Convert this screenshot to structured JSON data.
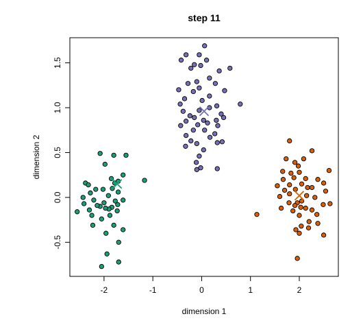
{
  "chart_data": {
    "type": "scatter",
    "title": "step 11",
    "xlabel": "dimension 1",
    "ylabel": "dimension 2",
    "xlim": [
      -2.7,
      2.8
    ],
    "ylim": [
      -0.88,
      1.78
    ],
    "x_ticks": [
      -2,
      -1,
      0,
      1,
      2
    ],
    "y_ticks": [
      -0.5,
      0.0,
      0.5,
      1.0,
      1.5
    ],
    "x_tick_labels": [
      "-2",
      "-1",
      "0",
      "1",
      "2"
    ],
    "y_tick_labels": [
      "-0.5",
      "0.0",
      "0.5",
      "1.0",
      "1.5"
    ],
    "grid": false,
    "series": [
      {
        "color": "#1b9e77",
        "centroid": [
          -1.73,
          0.15
        ],
        "points": [
          [
            -2.08,
            0.49
          ],
          [
            -1.98,
            0.37
          ],
          [
            -1.8,
            0.47
          ],
          [
            -1.55,
            0.47
          ],
          [
            -1.61,
            0.25
          ],
          [
            -1.17,
            0.19
          ],
          [
            -2.38,
            0.16
          ],
          [
            -2.32,
            0.14
          ],
          [
            -1.85,
            0.21
          ],
          [
            -1.78,
            0.16
          ],
          [
            -1.71,
            0.18
          ],
          [
            -1.83,
            0.1
          ],
          [
            -2.02,
            0.09
          ],
          [
            -2.17,
            0.09
          ],
          [
            -2.28,
            0.05
          ],
          [
            -1.71,
            0.06
          ],
          [
            -1.91,
            0.02
          ],
          [
            -2.43,
            0.0
          ],
          [
            -1.61,
            -0.03
          ],
          [
            -1.72,
            -0.08
          ],
          [
            -1.77,
            -0.04
          ],
          [
            -2.0,
            -0.06
          ],
          [
            -2.21,
            -0.03
          ],
          [
            -2.41,
            -0.07
          ],
          [
            -1.84,
            -0.11
          ],
          [
            -1.9,
            -0.13
          ],
          [
            -1.97,
            -0.12
          ],
          [
            -2.08,
            -0.1
          ],
          [
            -2.14,
            -0.09
          ],
          [
            -2.3,
            -0.14
          ],
          [
            -2.55,
            -0.16
          ],
          [
            -1.73,
            -0.15
          ],
          [
            -1.88,
            -0.2
          ],
          [
            -2.05,
            -0.24
          ],
          [
            -2.25,
            -0.2
          ],
          [
            -1.8,
            -0.31
          ],
          [
            -1.96,
            -0.4
          ],
          [
            -2.23,
            -0.31
          ],
          [
            -1.61,
            -0.36
          ],
          [
            -1.7,
            -0.5
          ],
          [
            -1.94,
            -0.63
          ],
          [
            -1.7,
            -0.72
          ],
          [
            -2.05,
            -0.77
          ]
        ]
      },
      {
        "color": "#7570b3",
        "centroid": [
          0.05,
          0.96
        ],
        "points": [
          [
            0.06,
            1.69
          ],
          [
            -0.32,
            1.59
          ],
          [
            -0.05,
            1.59
          ],
          [
            -0.42,
            1.53
          ],
          [
            0.1,
            1.53
          ],
          [
            -0.15,
            1.48
          ],
          [
            0.58,
            1.44
          ],
          [
            -0.22,
            1.44
          ],
          [
            -0.02,
            1.47
          ],
          [
            0.36,
            1.41
          ],
          [
            0.16,
            1.33
          ],
          [
            0.28,
            1.27
          ],
          [
            -0.1,
            1.29
          ],
          [
            -0.28,
            1.27
          ],
          [
            -0.05,
            1.22
          ],
          [
            -0.47,
            1.2
          ],
          [
            0.47,
            1.19
          ],
          [
            -0.17,
            1.18
          ],
          [
            0.16,
            1.13
          ],
          [
            -0.35,
            1.1
          ],
          [
            0.01,
            1.08
          ],
          [
            -0.44,
            1.04
          ],
          [
            0.79,
            1.04
          ],
          [
            0.31,
            1.02
          ],
          [
            0.16,
            1.0
          ],
          [
            -0.38,
            0.96
          ],
          [
            -0.05,
            0.97
          ],
          [
            0.4,
            0.93
          ],
          [
            0.45,
            0.89
          ],
          [
            -0.24,
            0.91
          ],
          [
            -0.15,
            0.89
          ],
          [
            0.04,
            0.86
          ],
          [
            0.3,
            0.86
          ],
          [
            -0.32,
            0.85
          ],
          [
            0.12,
            0.83
          ],
          [
            -0.08,
            0.81
          ],
          [
            -0.43,
            0.8
          ],
          [
            0.33,
            0.8
          ],
          [
            -0.17,
            0.75
          ],
          [
            0.06,
            0.75
          ],
          [
            0.27,
            0.71
          ],
          [
            -0.32,
            0.69
          ],
          [
            0.17,
            0.67
          ],
          [
            -0.22,
            0.63
          ],
          [
            0.42,
            0.62
          ],
          [
            -0.1,
            0.6
          ],
          [
            0.32,
            0.61
          ],
          [
            -0.33,
            0.57
          ],
          [
            0.04,
            0.53
          ],
          [
            -0.05,
            0.46
          ],
          [
            -0.11,
            0.39
          ],
          [
            -0.02,
            0.33
          ],
          [
            0.32,
            0.32
          ],
          [
            -0.1,
            0.31
          ]
        ]
      },
      {
        "color": "#d95f02",
        "centroid": [
          2.0,
          0.02
        ],
        "points": [
          [
            1.8,
            0.63
          ],
          [
            2.26,
            0.52
          ],
          [
            2.09,
            0.43
          ],
          [
            1.73,
            0.43
          ],
          [
            1.91,
            0.39
          ],
          [
            1.98,
            0.35
          ],
          [
            1.66,
            0.29
          ],
          [
            1.83,
            0.27
          ],
          [
            2.0,
            0.28
          ],
          [
            2.61,
            0.3
          ],
          [
            1.89,
            0.22
          ],
          [
            2.13,
            0.21
          ],
          [
            2.38,
            0.2
          ],
          [
            1.67,
            0.2
          ],
          [
            2.5,
            0.16
          ],
          [
            2.05,
            0.15
          ],
          [
            1.8,
            0.14
          ],
          [
            1.55,
            0.13
          ],
          [
            1.92,
            0.09
          ],
          [
            2.17,
            0.11
          ],
          [
            2.26,
            0.11
          ],
          [
            1.7,
            0.08
          ],
          [
            2.54,
            0.07
          ],
          [
            1.8,
            0.04
          ],
          [
            2.15,
            0.02
          ],
          [
            1.6,
            0.01
          ],
          [
            2.32,
            0.0
          ],
          [
            2.05,
            -0.04
          ],
          [
            1.96,
            -0.06
          ],
          [
            1.79,
            -0.06
          ],
          [
            2.63,
            -0.07
          ],
          [
            2.49,
            -0.08
          ],
          [
            1.91,
            -0.09
          ],
          [
            1.63,
            -0.12
          ],
          [
            2.03,
            -0.11
          ],
          [
            2.13,
            -0.12
          ],
          [
            2.26,
            -0.14
          ],
          [
            1.87,
            -0.15
          ],
          [
            2.36,
            -0.19
          ],
          [
            1.13,
            -0.19
          ],
          [
            2.0,
            -0.2
          ],
          [
            2.2,
            -0.27
          ],
          [
            2.38,
            -0.29
          ],
          [
            2.04,
            -0.32
          ],
          [
            2.19,
            -0.34
          ],
          [
            1.93,
            -0.36
          ],
          [
            2.0,
            -0.4
          ],
          [
            2.5,
            -0.42
          ],
          [
            1.96,
            -0.68
          ]
        ]
      }
    ]
  }
}
